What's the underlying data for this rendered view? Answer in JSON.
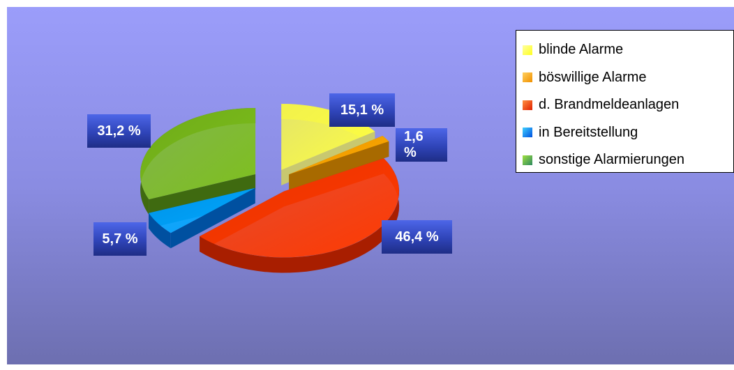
{
  "chart_data": {
    "type": "pie",
    "title": "",
    "slices": [
      {
        "name": "blinde Alarme",
        "value": 15.1,
        "label": "15,1 %",
        "color": "#ffff40",
        "dark": "#c8c870"
      },
      {
        "name": "böswillige Alarme",
        "value": 1.6,
        "label": "1,6 %",
        "color": "#ffa800",
        "dark": "#a86a00"
      },
      {
        "name": "d. Brandmeldeanlagen",
        "value": 46.4,
        "label": "46,4 %",
        "color": "#ff3a00",
        "dark": "#a81e00"
      },
      {
        "name": "in Bereitstellung",
        "value": 5.7,
        "label": "5,7 %",
        "color": "#00a8ff",
        "dark": "#0050a0"
      },
      {
        "name": "sonstige Alarmierungen",
        "value": 31.2,
        "label": "31,2 %",
        "color": "#7ec01c",
        "dark": "#3f6a10"
      }
    ],
    "legend": {
      "position": "right"
    },
    "exploded": true,
    "three_d": true
  }
}
